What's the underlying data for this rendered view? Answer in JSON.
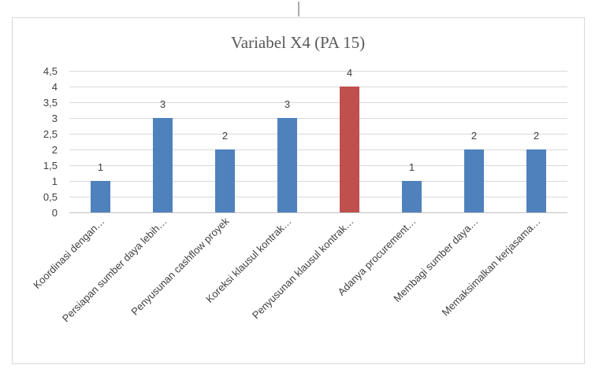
{
  "chart_data": {
    "type": "bar",
    "title": "Variabel X4 (PA 15)",
    "xlabel": "",
    "ylabel": "",
    "ylim": [
      0,
      4.5
    ],
    "yticks": [
      "0",
      "0,5",
      "1",
      "1,5",
      "2",
      "2,5",
      "3",
      "3,5",
      "4",
      "4,5"
    ],
    "grid": true,
    "legend": "none",
    "categories": [
      "Koordinasi dengan…",
      "Persiapan sumber daya lebih…",
      "Penyusunan cashflow proyek",
      "Koreksi klausul kontrak…",
      "Penyusunan klausul kontrak…",
      "Adanya procurement…",
      "Membagi sumber daya…",
      "Memaksimalkan kerjasama…"
    ],
    "values": [
      1,
      3,
      2,
      3,
      4,
      1,
      2,
      2
    ],
    "data_labels": [
      "1",
      "3",
      "2",
      "3",
      "4",
      "1",
      "2",
      "2"
    ],
    "colors": {
      "default": "#4f81bd",
      "highlight": "#c0504d",
      "gridline": "#d9d9d9",
      "axis": "#bfbfbf",
      "frame": "#d9d9d9"
    },
    "highlight_index": 4
  }
}
